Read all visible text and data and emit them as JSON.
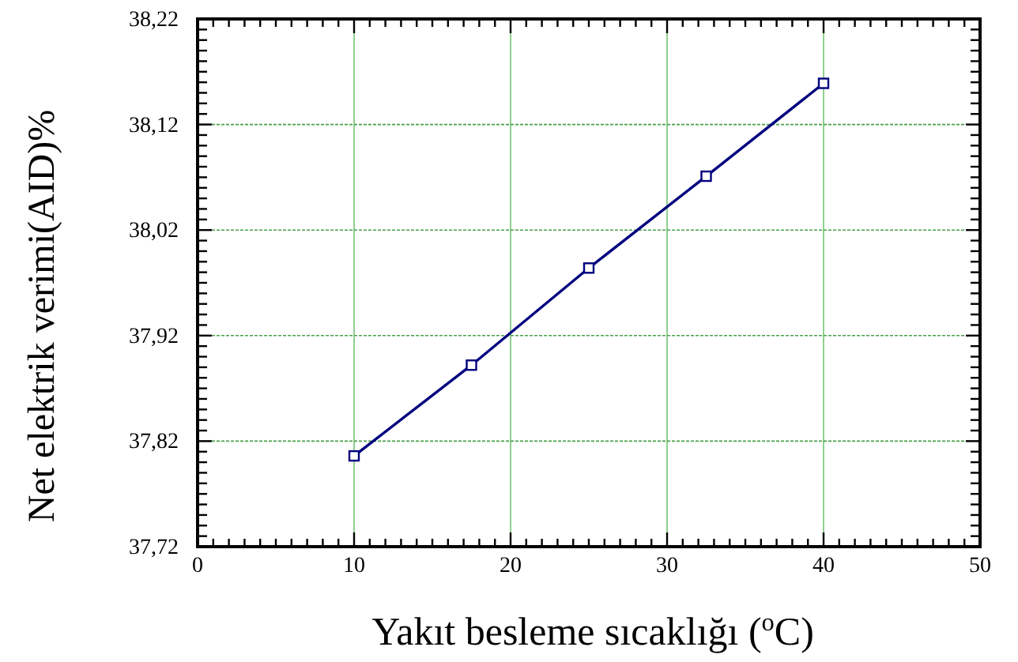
{
  "chart_data": {
    "type": "line",
    "xlabel": "Yakıt besleme sıcaklığı ($^{o}$C)",
    "ylabel": "Net elektrik verimi(AID)%",
    "series": [
      {
        "color": "#00007f",
        "x": [
          10,
          17.5,
          25,
          32.5,
          40
        ],
        "values": [
          37.806,
          37.892,
          37.984,
          38.071,
          38.159
        ]
      }
    ],
    "xlim": [
      0,
      50
    ],
    "ylim": [
      37.72,
      38.22
    ],
    "xticks": [
      0,
      {
        "value": 1,
        "label": null
      },
      {
        "value": 2,
        "label": null
      },
      {
        "value": 3,
        "label": null
      },
      {
        "value": 4,
        "label": null
      },
      {
        "value": 5,
        "label": null
      },
      {
        "value": 6,
        "label": null
      },
      {
        "value": 7,
        "label": null
      },
      {
        "value": 8,
        "label": null
      },
      {
        "value": 9,
        "label": null
      },
      10,
      {
        "value": 11,
        "label": null
      },
      {
        "value": 12,
        "label": null
      },
      {
        "value": 13,
        "label": null
      },
      {
        "value": 14,
        "label": null
      },
      {
        "value": 15,
        "label": null
      },
      {
        "value": 16,
        "label": null
      },
      {
        "value": 17,
        "label": null
      },
      {
        "value": 18,
        "label": null
      },
      {
        "value": 19,
        "label": null
      },
      20,
      {
        "value": 21,
        "label": null
      },
      {
        "value": 22,
        "label": null
      },
      {
        "value": 23,
        "label": null
      },
      {
        "value": 24,
        "label": null
      },
      {
        "value": 25,
        "label": null
      },
      {
        "value": 26,
        "label": null
      },
      {
        "value": 27,
        "label": null
      },
      {
        "value": 28,
        "label": null
      },
      {
        "value": 29,
        "label": null
      },
      30,
      {
        "value": 31,
        "label": null
      },
      {
        "value": 32,
        "label": null
      },
      {
        "value": 33,
        "label": null
      },
      {
        "value": 34,
        "label": null
      },
      {
        "value": 35,
        "label": null
      },
      {
        "value": 36,
        "label": null
      },
      {
        "value": 37,
        "label": null
      },
      {
        "value": 38,
        "label": null
      },
      {
        "value": 39,
        "label": null
      },
      40,
      {
        "value": 41,
        "label": null
      },
      {
        "value": 42,
        "label": null
      },
      {
        "value": 43,
        "label": null
      },
      {
        "value": 44,
        "label": null
      },
      {
        "value": 45,
        "label": null
      },
      {
        "value": 46,
        "label": null
      },
      {
        "value": 47,
        "label": null
      },
      {
        "value": 48,
        "label": null
      },
      {
        "value": 49,
        "label": null
      },
      50
    ],
    "yticks": [
      {
        "value": 37.72,
        "label": "37,72"
      },
      {
        "value": 37.73,
        "label": null
      },
      {
        "value": 37.74,
        "label": null
      },
      {
        "value": 37.75,
        "label": null
      },
      {
        "value": 37.76,
        "label": null
      },
      {
        "value": 37.77,
        "label": null
      },
      {
        "value": 37.78,
        "label": null
      },
      {
        "value": 37.79,
        "label": null
      },
      {
        "value": 37.8,
        "label": null
      },
      {
        "value": 37.81,
        "label": null
      },
      {
        "value": 37.82,
        "label": "37,82"
      },
      {
        "value": 37.83,
        "label": null
      },
      {
        "value": 37.84,
        "label": null
      },
      {
        "value": 37.85,
        "label": null
      },
      {
        "value": 37.86,
        "label": null
      },
      {
        "value": 37.87,
        "label": null
      },
      {
        "value": 37.88,
        "label": null
      },
      {
        "value": 37.89,
        "label": null
      },
      {
        "value": 37.9,
        "label": null
      },
      {
        "value": 37.91,
        "label": null
      },
      {
        "value": 37.92,
        "label": "37,92"
      },
      {
        "value": 37.93,
        "label": null
      },
      {
        "value": 37.94,
        "label": null
      },
      {
        "value": 37.95,
        "label": null
      },
      {
        "value": 37.96,
        "label": null
      },
      {
        "value": 37.97,
        "label": null
      },
      {
        "value": 37.98,
        "label": null
      },
      {
        "value": 37.99,
        "label": null
      },
      {
        "value": 38.0,
        "label": null
      },
      {
        "value": 38.01,
        "label": null
      },
      {
        "value": 38.02,
        "label": "38,02"
      },
      {
        "value": 38.03,
        "label": null
      },
      {
        "value": 38.04,
        "label": null
      },
      {
        "value": 38.05,
        "label": null
      },
      {
        "value": 38.06,
        "label": null
      },
      {
        "value": 38.07,
        "label": null
      },
      {
        "value": 38.08,
        "label": null
      },
      {
        "value": 38.09,
        "label": null
      },
      {
        "value": 38.1,
        "label": null
      },
      {
        "value": 38.11,
        "label": null
      },
      {
        "value": 38.12,
        "label": "38,12"
      },
      {
        "value": 38.13,
        "label": null
      },
      {
        "value": 38.14,
        "label": null
      },
      {
        "value": 38.15,
        "label": null
      },
      {
        "value": 38.16,
        "label": null
      },
      {
        "value": 38.17,
        "label": null
      },
      {
        "value": 38.18,
        "label": null
      },
      {
        "value": 38.19,
        "label": null
      },
      {
        "value": 38.2,
        "label": null
      },
      {
        "value": 38.21,
        "label": null
      },
      {
        "value": 38.22,
        "label": "38,22"
      }
    ],
    "grid": true,
    "marker": "square",
    "line_style": "solid"
  }
}
